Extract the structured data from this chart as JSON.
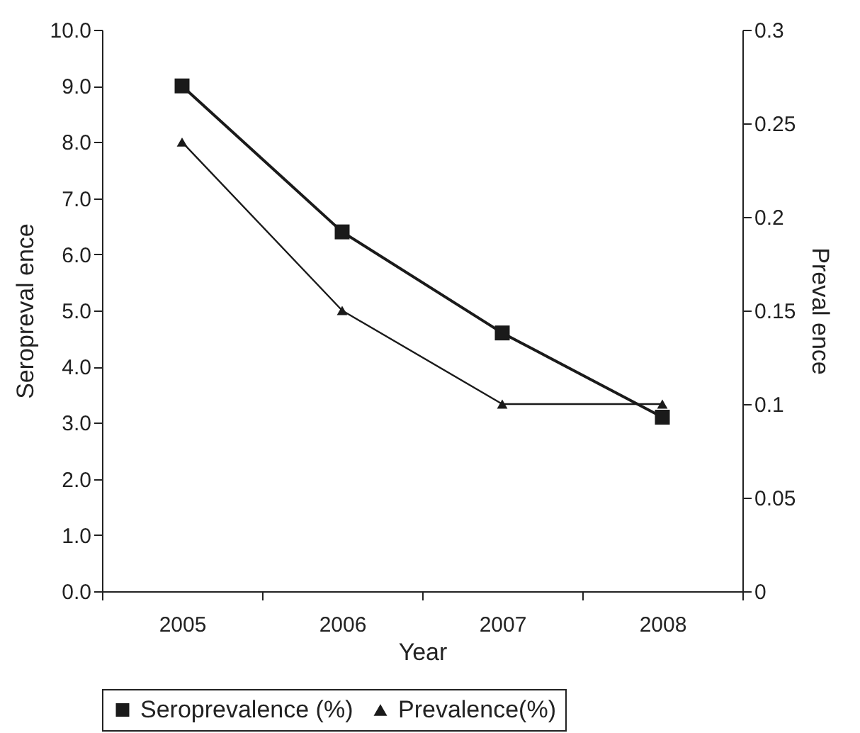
{
  "chart_data": {
    "type": "line",
    "xlabel": "Year",
    "ylabel": "Seropreval ence",
    "y2label": "Preval ence",
    "categories": [
      "2005",
      "2006",
      "2007",
      "2008"
    ],
    "series": [
      {
        "name": "Seroprevalence (%)",
        "color": "#1a1a1a",
        "marker": "square",
        "values": [
          9.0,
          6.4,
          4.6,
          3.1
        ]
      },
      {
        "name": "Prevalence(%)",
        "color": "#1a1a1a",
        "marker": "triangle",
        "axis": "y2",
        "values": [
          0.24,
          0.15,
          0.1,
          0.1
        ]
      }
    ],
    "ylim": [
      0,
      10
    ],
    "yticks": [
      {
        "value": 0,
        "label": "0.0"
      },
      {
        "value": 1,
        "label": "1.0"
      },
      {
        "value": 2,
        "label": "2.0"
      },
      {
        "value": 3,
        "label": "3.0"
      },
      {
        "value": 4,
        "label": "4.0"
      },
      {
        "value": 5,
        "label": "5.0"
      },
      {
        "value": 6,
        "label": "6.0"
      },
      {
        "value": 7,
        "label": "7.0"
      },
      {
        "value": 8,
        "label": "8.0"
      },
      {
        "value": 9,
        "label": "9.0"
      },
      {
        "value": 10,
        "label": "10.0"
      }
    ],
    "y2lim": [
      0,
      0.3
    ],
    "y2ticks": [
      0,
      0.05,
      0.1,
      0.15,
      0.2,
      0.25,
      0.3
    ],
    "grid": false,
    "legend": "bottom",
    "line_style": "solid"
  }
}
